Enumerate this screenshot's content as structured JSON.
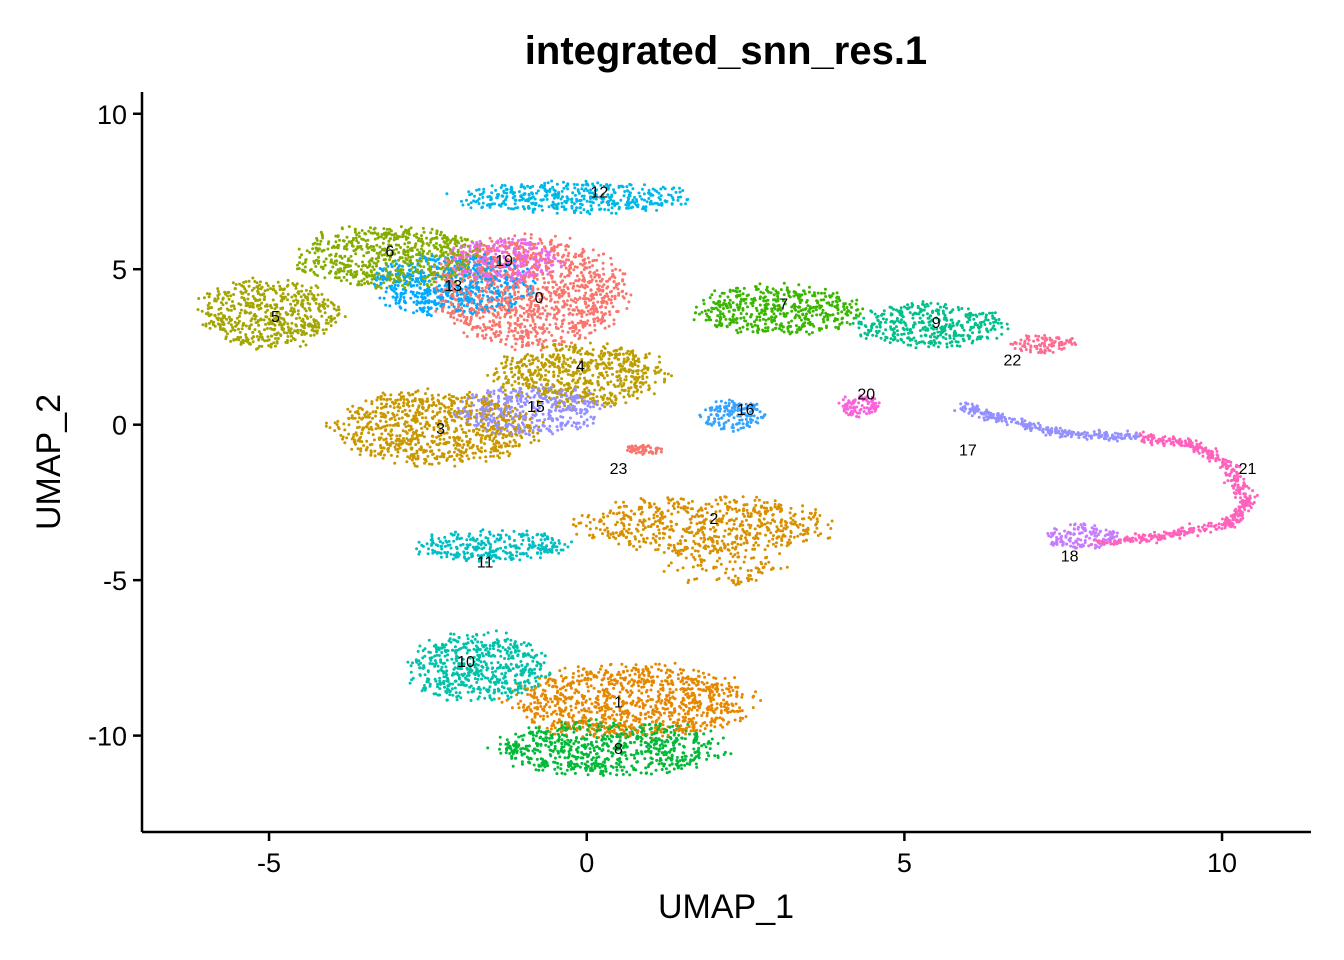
{
  "chart_data": {
    "type": "scatter",
    "title": "integrated_snn_res.1",
    "xlabel": "UMAP_1",
    "ylabel": "UMAP_2",
    "xlim": [
      -7.0,
      11.4
    ],
    "ylim": [
      -13.1,
      10.7
    ],
    "xticks": [
      {
        "value": -5,
        "label": "-5"
      },
      {
        "value": 0,
        "label": "0"
      },
      {
        "value": 5,
        "label": "5"
      },
      {
        "value": 10,
        "label": "10"
      }
    ],
    "yticks": [
      {
        "value": 10,
        "label": "10"
      },
      {
        "value": 5,
        "label": "5"
      },
      {
        "value": 0,
        "label": "0"
      },
      {
        "value": -5,
        "label": "-5"
      },
      {
        "value": -10,
        "label": "-10"
      }
    ],
    "grid": false,
    "legend": "none",
    "clusters": [
      {
        "label": "0",
        "x": -0.75,
        "y": 4.1,
        "color": "#F8766D",
        "blobs": [
          [
            -0.9,
            4.3,
            1.5,
            1.8,
            1.0
          ]
        ]
      },
      {
        "label": "1",
        "x": 0.5,
        "y": -8.9,
        "color": "#E58700",
        "blobs": [
          [
            0.7,
            -8.9,
            1.9,
            1.2,
            1.0
          ]
        ]
      },
      {
        "label": "2",
        "x": 2.0,
        "y": -3.0,
        "color": "#D89000",
        "blobs": [
          [
            1.9,
            -3.2,
            2.0,
            0.9,
            0.75
          ],
          [
            2.1,
            -4.5,
            1.0,
            0.7,
            0.25
          ]
        ]
      },
      {
        "label": "3",
        "x": -2.3,
        "y": -0.1,
        "color": "#C99800",
        "blobs": [
          [
            -2.4,
            -0.1,
            1.6,
            1.2,
            1.0
          ]
        ]
      },
      {
        "label": "4",
        "x": -0.1,
        "y": 1.9,
        "color": "#BD9D00",
        "blobs": [
          [
            -0.1,
            1.6,
            1.4,
            1.0,
            1.0
          ]
        ]
      },
      {
        "label": "5",
        "x": -4.9,
        "y": 3.5,
        "color": "#A3A500",
        "blobs": [
          [
            -5.0,
            3.6,
            1.1,
            1.1,
            1.0
          ]
        ]
      },
      {
        "label": "6",
        "x": -3.1,
        "y": 5.6,
        "color": "#85AD00",
        "blobs": [
          [
            -3.1,
            5.4,
            1.5,
            1.0,
            1.0
          ]
        ]
      },
      {
        "label": "7",
        "x": 3.1,
        "y": 3.9,
        "color": "#39B600",
        "blobs": [
          [
            3.0,
            3.7,
            1.3,
            0.8,
            1.0
          ]
        ]
      },
      {
        "label": "8",
        "x": 0.5,
        "y": -10.4,
        "color": "#00BA38",
        "blobs": [
          [
            0.4,
            -10.4,
            1.8,
            0.9,
            1.0
          ]
        ]
      },
      {
        "label": "9",
        "x": 5.5,
        "y": 3.3,
        "color": "#00C08B",
        "blobs": [
          [
            5.4,
            3.2,
            1.2,
            0.7,
            1.0
          ]
        ]
      },
      {
        "label": "10",
        "x": -1.9,
        "y": -7.6,
        "color": "#00C1AA",
        "blobs": [
          [
            -1.7,
            -7.8,
            1.1,
            1.1,
            1.0
          ]
        ]
      },
      {
        "label": "11",
        "x": -1.6,
        "y": -4.4,
        "color": "#00BFC4",
        "blobs": [
          [
            -1.5,
            -3.9,
            1.2,
            0.5,
            1.0
          ]
        ]
      },
      {
        "label": "12",
        "x": 0.2,
        "y": 7.5,
        "color": "#00B8E7",
        "blobs": [
          [
            -0.2,
            7.3,
            1.9,
            0.5,
            1.0
          ]
        ]
      },
      {
        "label": "13",
        "x": -2.1,
        "y": 4.5,
        "color": "#00A9FF",
        "blobs": [
          [
            -2.1,
            4.5,
            1.3,
            1.0,
            1.0
          ]
        ]
      },
      {
        "label": "15",
        "x": -0.8,
        "y": 0.6,
        "color": "#9590FF",
        "blobs": [
          [
            -0.9,
            0.5,
            1.2,
            0.8,
            1.0
          ]
        ]
      },
      {
        "label": "16",
        "x": 2.5,
        "y": 0.5,
        "color": "#35A2FF",
        "blobs": [
          [
            2.3,
            0.3,
            0.5,
            0.5,
            1.0
          ]
        ]
      },
      {
        "label": "17",
        "x": 6.0,
        "y": -0.8,
        "color": "#9590FF",
        "blobs": []
      },
      {
        "label": "18",
        "x": 7.6,
        "y": -4.2,
        "color": "#C77CFF",
        "blobs": [
          [
            7.8,
            -3.6,
            0.6,
            0.4,
            1.0
          ]
        ]
      },
      {
        "label": "19",
        "x": -1.3,
        "y": 5.3,
        "color": "#E76BF3",
        "blobs": [
          [
            -1.3,
            5.3,
            0.9,
            0.7,
            1.0
          ]
        ]
      },
      {
        "label": "20",
        "x": 4.4,
        "y": 1.0,
        "color": "#FA62DB",
        "blobs": [
          [
            4.3,
            0.6,
            0.35,
            0.35,
            1.0
          ]
        ]
      },
      {
        "label": "21",
        "x": 10.4,
        "y": -1.4,
        "color": "#FF62BC",
        "blobs": []
      },
      {
        "label": "22",
        "x": 6.7,
        "y": 2.1,
        "color": "#FF6C91",
        "blobs": [
          [
            7.2,
            2.6,
            0.5,
            0.3,
            1.0
          ]
        ]
      },
      {
        "label": "23",
        "x": 0.5,
        "y": -1.4,
        "color": "#F8766D",
        "blobs": [
          [
            0.9,
            -0.8,
            0.3,
            0.15,
            1.0
          ]
        ]
      }
    ],
    "trajectory": [
      {
        "x": 5.9,
        "y": 0.6
      },
      {
        "x": 6.5,
        "y": 0.2
      },
      {
        "x": 7.5,
        "y": -0.3
      },
      {
        "x": 8.6,
        "y": -0.4
      },
      {
        "x": 9.5,
        "y": -0.6
      },
      {
        "x": 10.1,
        "y": -1.3
      },
      {
        "x": 10.4,
        "y": -2.5
      },
      {
        "x": 10.1,
        "y": -3.2
      },
      {
        "x": 9.0,
        "y": -3.6
      },
      {
        "x": 8.0,
        "y": -3.8
      }
    ]
  }
}
